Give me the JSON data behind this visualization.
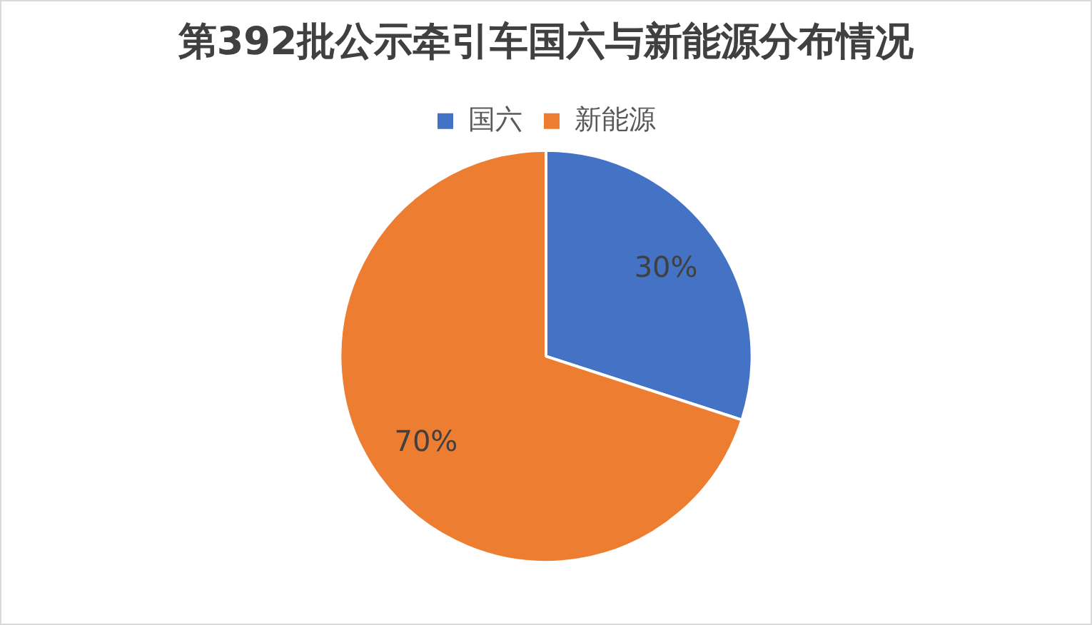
{
  "chart_data": {
    "type": "pie",
    "title": "第392批公示牵引车国六与新能源分布情况",
    "categories": [
      "国六",
      "新能源"
    ],
    "values": [
      30,
      70
    ],
    "colors": [
      "#4472c4",
      "#ed7d31"
    ],
    "value_labels": [
      "30%",
      "70%"
    ],
    "legend": "top"
  }
}
